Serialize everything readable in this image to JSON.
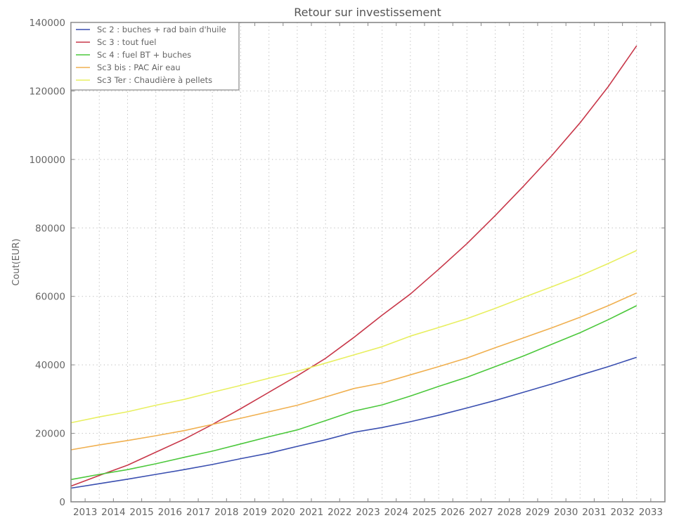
{
  "chart_data": {
    "type": "line",
    "title": "Retour sur investissement",
    "xlabel": "",
    "ylabel": "Cout(EUR)",
    "xlim": [
      2012.5,
      2033.5
    ],
    "ylim": [
      0,
      140000
    ],
    "grid": true,
    "legend_position": "upper left",
    "x_tick_labels": [
      "2013",
      "2014",
      "2015",
      "2016",
      "2017",
      "2018",
      "2019",
      "2020",
      "2021",
      "2022",
      "2023",
      "2024",
      "2025",
      "2026",
      "2027",
      "2028",
      "2029",
      "2030",
      "2031",
      "2032",
      "2033"
    ],
    "y_tick_labels": [
      "0",
      "20000",
      "40000",
      "60000",
      "80000",
      "100000",
      "120000",
      "140000"
    ],
    "y_ticks": [
      0,
      20000,
      40000,
      60000,
      80000,
      100000,
      120000,
      140000
    ],
    "x": [
      2012.5,
      2013.5,
      2014.5,
      2015.5,
      2016.5,
      2017.5,
      2018.5,
      2019.5,
      2020.5,
      2021.5,
      2022.5,
      2023.5,
      2024.5,
      2025.5,
      2026.5,
      2027.5,
      2028.5,
      2029.5,
      2030.5,
      2031.5,
      2032.5
    ],
    "series": [
      {
        "name": "Sc 2 : buches + rad bain d'huile",
        "color": "#3a4fb0",
        "values": [
          4000,
          5300,
          6600,
          8000,
          9400,
          10900,
          12600,
          14200,
          16200,
          18100,
          20300,
          21700,
          23400,
          25300,
          27400,
          29600,
          32000,
          34400,
          37000,
          39500,
          42200
        ]
      },
      {
        "name": "Sc 3 : tout fuel",
        "color": "#c8384a",
        "values": [
          4600,
          7700,
          10700,
          14500,
          18300,
          22600,
          27200,
          32000,
          36800,
          41900,
          48000,
          54500,
          60700,
          67900,
          75400,
          83600,
          92200,
          101100,
          110700,
          121300,
          133200
        ]
      },
      {
        "name": "Sc 4 : fuel BT + buches",
        "color": "#4cc83c",
        "values": [
          6500,
          8000,
          9400,
          11100,
          13000,
          14800,
          16900,
          19000,
          21000,
          23700,
          26500,
          28300,
          30900,
          33700,
          36400,
          39500,
          42600,
          46000,
          49400,
          53200,
          57300
        ]
      },
      {
        "name": "Sc3 bis : PAC Air eau",
        "color": "#f0b050",
        "values": [
          15200,
          16600,
          17900,
          19300,
          20800,
          22600,
          24400,
          26300,
          28200,
          30600,
          33100,
          34700,
          37100,
          39500,
          42000,
          45000,
          47900,
          50800,
          53900,
          57300,
          61000
        ]
      },
      {
        "name": "Sc3 Ter : Chaudière à pellets",
        "color": "#e8ef60",
        "values": [
          23100,
          24800,
          26300,
          28200,
          29900,
          32000,
          34000,
          36100,
          38100,
          40500,
          42900,
          45300,
          48400,
          50900,
          53500,
          56500,
          59700,
          62800,
          66000,
          69600,
          73400
        ]
      }
    ]
  }
}
